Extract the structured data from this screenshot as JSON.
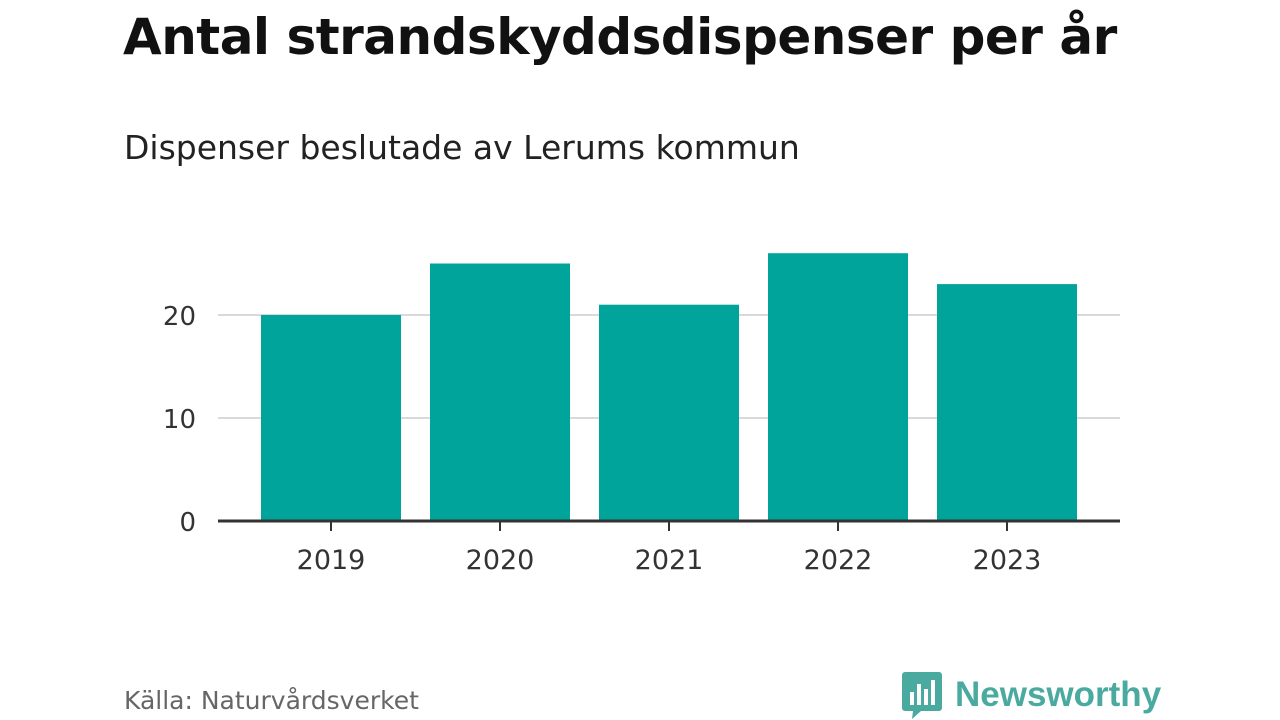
{
  "title": "Antal strandskyddsdispenser per år",
  "subtitle": "Dispenser beslutade av Lerums kommun",
  "source": "Källa: Naturvårdsverket",
  "brand": {
    "name": "Newsworthy",
    "color": "#4aaa9f",
    "icon": "bar-chart-speech-bubble-icon"
  },
  "chart_data": {
    "type": "bar",
    "categories": [
      "2019",
      "2020",
      "2021",
      "2022",
      "2023"
    ],
    "values": [
      20,
      25,
      21,
      26,
      23
    ],
    "bar_color": "#00a49b",
    "grid_color": "#d9d9d9",
    "ylim": [
      0,
      28
    ],
    "yticks": [
      0,
      10,
      20
    ],
    "grid": true
  }
}
